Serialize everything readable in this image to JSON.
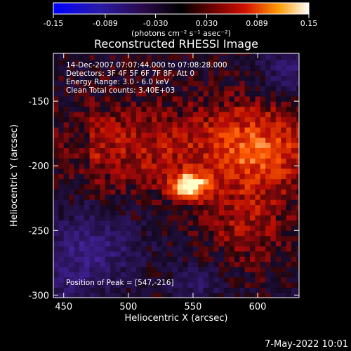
{
  "chart_data": {
    "type": "heatmap",
    "title": "Reconstructed RHESSI Image",
    "xlabel": "Heliocentric X (arcsec)",
    "ylabel": "Heliocentric Y (arcsec)",
    "xlim": [
      442,
      632
    ],
    "ylim": [
      -302,
      -113
    ],
    "x_ticks": [
      450,
      500,
      550,
      600
    ],
    "y_ticks": [
      -150,
      -200,
      -250,
      -300
    ],
    "colorbar": {
      "label": "(photons cm⁻² s⁻¹ asec⁻²)",
      "range": [
        -0.15,
        0.15
      ],
      "ticks": [
        "-0.15",
        "-0.089",
        "-0.030",
        "0.030",
        "0.089",
        "0.15"
      ]
    },
    "annotations": [
      "14-Dec-2007 07:07:44.000 to 07:08:28.000",
      "Detectors: 3F 4F 5F 6F 7F 8F, Att 0",
      "Energy Range: 3.0 - 6.0 keV",
      "Clean    Total counts: 3.40E+03",
      "Position of Peak = [547,-216]"
    ],
    "peak": {
      "x": 547,
      "y": -216,
      "value": 0.15
    },
    "grid": false
  },
  "footer": {
    "date": "7-May-2022 10:01"
  }
}
